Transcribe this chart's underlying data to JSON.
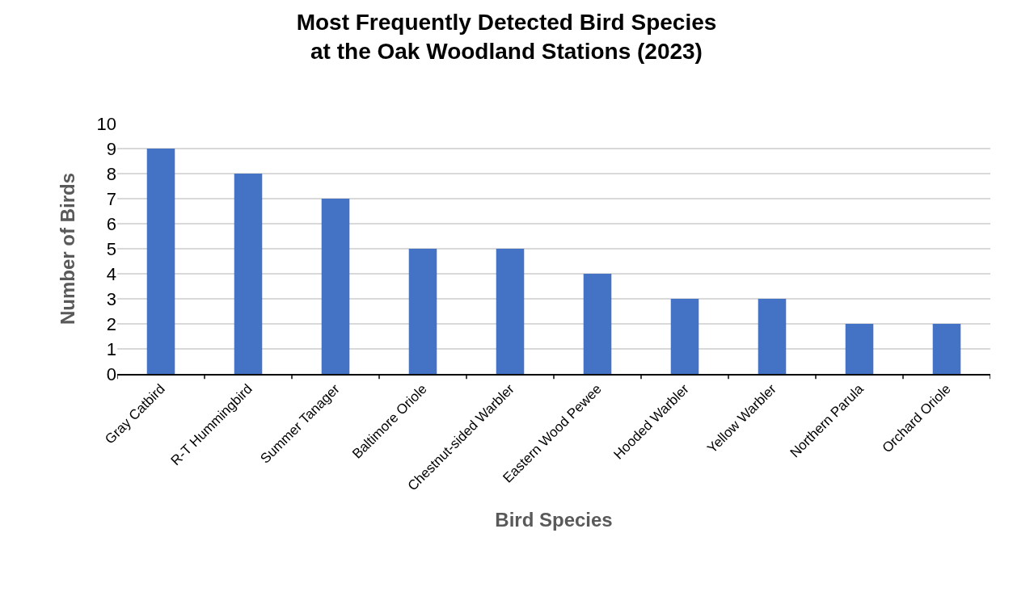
{
  "chart_data": {
    "type": "bar",
    "title": "Most Frequently Detected Bird Species\nat the Oak Woodland Stations (2023)",
    "xlabel": "Bird Species",
    "ylabel": "Number of Birds",
    "categories": [
      "Gray Catbird",
      "R-T Hummingbird",
      "Summer Tanager",
      "Baltimore Oriole",
      "Chestnut-sided Warbler",
      "Eastern Wood Pewee",
      "Hooded Warbler",
      "Yellow Warbler",
      "Northern Parula",
      "Orchard Oriole"
    ],
    "values": [
      9,
      8,
      7,
      5,
      5,
      4,
      3,
      3,
      2,
      2
    ],
    "color": "#4472c4",
    "ylim": [
      0,
      10
    ],
    "yticks": [
      0,
      1,
      2,
      3,
      4,
      5,
      6,
      7,
      8,
      9,
      10
    ],
    "grid": "y"
  }
}
